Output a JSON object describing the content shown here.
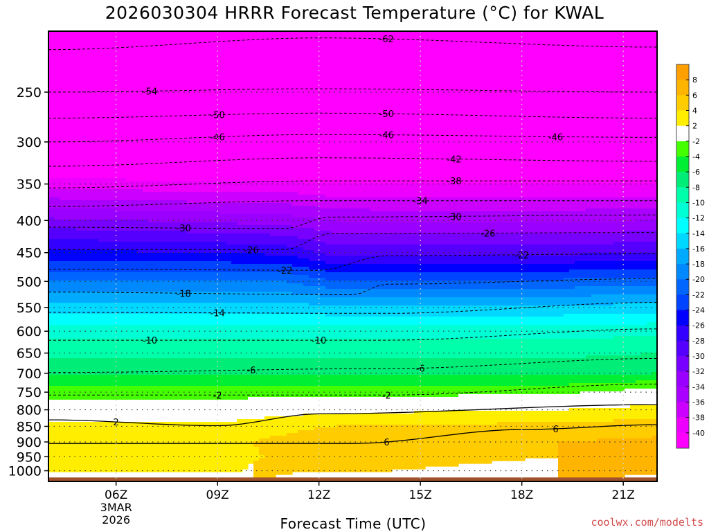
{
  "chart_data": {
    "type": "heatmap",
    "title": "2026030304 HRRR Forecast Temperature (°C) for KWAL",
    "xlabel": "Forecast Time (UTC)",
    "ylabel": "",
    "credit": "coolwx.com/modelts",
    "x_ticks": [
      {
        "label": "06Z",
        "hour": 6,
        "sub1": "3MAR",
        "sub2": "2026"
      },
      {
        "label": "09Z",
        "hour": 9,
        "sub1": "",
        "sub2": ""
      },
      {
        "label": "12Z",
        "hour": 12,
        "sub1": "",
        "sub2": ""
      },
      {
        "label": "15Z",
        "hour": 15,
        "sub1": "",
        "sub2": ""
      },
      {
        "label": "18Z",
        "hour": 18,
        "sub1": "",
        "sub2": ""
      },
      {
        "label": "21Z",
        "hour": 21,
        "sub1": "",
        "sub2": ""
      }
    ],
    "xlim": [
      4,
      22
    ],
    "y_ticks": [
      250,
      300,
      350,
      400,
      450,
      500,
      550,
      600,
      650,
      700,
      750,
      800,
      850,
      900,
      950,
      1000
    ],
    "ylim": [
      1040,
      200
    ],
    "y_scale": "log-pressure",
    "colorbar": {
      "ticks": [
        8,
        6,
        4,
        2,
        -2,
        -4,
        -6,
        -8,
        -10,
        -12,
        -14,
        -16,
        -18,
        -20,
        -22,
        -24,
        -26,
        -28,
        -30,
        -32,
        -34,
        -36,
        -38,
        -40
      ],
      "bands": [
        {
          "min": 8,
          "max": 10,
          "color": "#ffa000"
        },
        {
          "min": 6,
          "max": 8,
          "color": "#ffb400"
        },
        {
          "min": 4,
          "max": 6,
          "color": "#ffcc00"
        },
        {
          "min": 2,
          "max": 4,
          "color": "#ffee00"
        },
        {
          "min": -2,
          "max": 2,
          "color": "#ffffff"
        },
        {
          "min": -4,
          "max": -2,
          "color": "#44ff00"
        },
        {
          "min": -6,
          "max": -4,
          "color": "#00ee33"
        },
        {
          "min": -8,
          "max": -6,
          "color": "#00ee77"
        },
        {
          "min": -10,
          "max": -8,
          "color": "#00ffaa"
        },
        {
          "min": -12,
          "max": -10,
          "color": "#00ffd4"
        },
        {
          "min": -14,
          "max": -12,
          "color": "#00ffff"
        },
        {
          "min": -16,
          "max": -14,
          "color": "#00d8ff"
        },
        {
          "min": -18,
          "max": -16,
          "color": "#00aaff"
        },
        {
          "min": -20,
          "max": -18,
          "color": "#0088ff"
        },
        {
          "min": -22,
          "max": -20,
          "color": "#0066ff"
        },
        {
          "min": -24,
          "max": -22,
          "color": "#0044ff"
        },
        {
          "min": -26,
          "max": -24,
          "color": "#0000ff"
        },
        {
          "min": -28,
          "max": -26,
          "color": "#3300ff"
        },
        {
          "min": -30,
          "max": -28,
          "color": "#5500ff"
        },
        {
          "min": -32,
          "max": -30,
          "color": "#7700ff"
        },
        {
          "min": -34,
          "max": -32,
          "color": "#9900ff"
        },
        {
          "min": -36,
          "max": -34,
          "color": "#aa00ff"
        },
        {
          "min": -38,
          "max": -36,
          "color": "#cc00ff"
        },
        {
          "min": -40,
          "max": -38,
          "color": "#ee00ff"
        },
        {
          "min": -100,
          "max": -40,
          "color": "#ff00ff"
        }
      ]
    },
    "profile_hours": [
      4,
      9,
      11,
      12.3,
      14,
      19,
      22
    ],
    "profiles": [
      {
        "p": [
          1040,
          1010,
          1000,
          950,
          900,
          850,
          800,
          780,
          750,
          700,
          650,
          600,
          550,
          500,
          450,
          400,
          350,
          300,
          250,
          200
        ],
        "hours": [
          4,
          22
        ]
      }
    ],
    "field": [
      {
        "hour": 4,
        "t": [
          5.5,
          4.5,
          3.5,
          3.0,
          3.5,
          2.5,
          0.5,
          -1.5,
          -3.0,
          -6.5,
          -8.5,
          -11.0,
          -15.0,
          -20.0,
          -25.5,
          -31.5,
          -39.0,
          -46.0,
          -54.0,
          -62.0
        ]
      },
      {
        "hour": 9,
        "t": [
          5.5,
          4.5,
          3.5,
          3.0,
          3.5,
          2.5,
          0.5,
          -1.5,
          -3.0,
          -6.5,
          -8.5,
          -11.0,
          -15.0,
          -20.0,
          -26.0,
          -32.5,
          -39.5,
          -46.5,
          -54.0,
          -62.0
        ]
      },
      {
        "hour": 11,
        "t": [
          6.5,
          6.0,
          5.0,
          4.5,
          4.5,
          3.5,
          1.0,
          -1.0,
          -3.0,
          -6.5,
          -8.5,
          -11.0,
          -15.0,
          -20.0,
          -26.5,
          -33.0,
          -39.5,
          -46.5,
          -54.0,
          -62.0
        ]
      },
      {
        "hour": 12.3,
        "t": [
          7.5,
          7.0,
          5.5,
          5.0,
          5.0,
          4.0,
          1.5,
          -0.5,
          -3.0,
          -6.5,
          -8.5,
          -11.0,
          -15.5,
          -21.5,
          -28.5,
          -34.0,
          -40.0,
          -46.5,
          -54.0,
          -62.0
        ]
      },
      {
        "hour": 14,
        "t": [
          7.5,
          7.0,
          6.0,
          5.5,
          5.5,
          4.5,
          1.5,
          -0.5,
          -3.0,
          -6.5,
          -8.5,
          -11.0,
          -15.5,
          -21.5,
          -28.5,
          -34.5,
          -40.0,
          -46.5,
          -54.0,
          -62.0
        ]
      },
      {
        "hour": 19,
        "t": [
          8.0,
          7.5,
          6.5,
          6.0,
          6.0,
          4.5,
          2.0,
          0.0,
          -2.5,
          -6.5,
          -8.5,
          -11.0,
          -15.5,
          -21.5,
          -28.5,
          -34.5,
          -40.0,
          -46.5,
          -54.0,
          -62.0
        ]
      },
      {
        "hour": 22,
        "t": [
          8.5,
          8.0,
          7.0,
          6.5,
          6.5,
          5.0,
          3.0,
          1.5,
          -1.0,
          -6.0,
          -8.0,
          -10.5,
          -15.0,
          -21.0,
          -28.0,
          -34.0,
          -40.0,
          -46.5,
          -54.0,
          -62.0
        ]
      }
    ],
    "contours": [
      {
        "label": "-62",
        "series": [
          {
            "hour": 4,
            "p": 214
          },
          {
            "hour": 12,
            "p": 205
          },
          {
            "hour": 22,
            "p": 212
          }
        ],
        "label_hour": 14
      },
      {
        "label": "-54",
        "series": [
          {
            "hour": 4,
            "p": 250
          },
          {
            "hour": 12,
            "p": 247
          },
          {
            "hour": 22,
            "p": 250
          }
        ],
        "label_hour": 7
      },
      {
        "label": "-50",
        "series": [
          {
            "hour": 4,
            "p": 275
          },
          {
            "hour": 12,
            "p": 270
          },
          {
            "hour": 22,
            "p": 275
          }
        ],
        "label_hour": 9
      },
      {
        "label": "-50",
        "series": [],
        "label_hour": 14
      },
      {
        "label": "-46",
        "series": [
          {
            "hour": 4,
            "p": 300
          },
          {
            "hour": 12,
            "p": 292
          },
          {
            "hour": 22,
            "p": 295
          }
        ],
        "label_hour": 9
      },
      {
        "label": "-46",
        "series": [],
        "label_hour": 14
      },
      {
        "label": "-46",
        "series": [],
        "label_hour": 19
      },
      {
        "label": "-42",
        "series": [
          {
            "hour": 4,
            "p": 328
          },
          {
            "hour": 12,
            "p": 318
          },
          {
            "hour": 22,
            "p": 322
          }
        ],
        "label_hour": 16
      },
      {
        "label": "-38",
        "series": [
          {
            "hour": 4,
            "p": 355
          },
          {
            "hour": 12,
            "p": 346
          },
          {
            "hour": 22,
            "p": 346
          }
        ],
        "label_hour": 16
      },
      {
        "label": "-34",
        "series": [
          {
            "hour": 4,
            "p": 380
          },
          {
            "hour": 12,
            "p": 372
          },
          {
            "hour": 22,
            "p": 372
          }
        ],
        "label_hour": 15
      },
      {
        "label": "-30",
        "series": [
          {
            "hour": 4,
            "p": 410
          },
          {
            "hour": 11,
            "p": 412
          },
          {
            "hour": 12.3,
            "p": 395
          },
          {
            "hour": 22,
            "p": 392
          }
        ],
        "label_hour": 8
      },
      {
        "label": "-30",
        "series": [],
        "label_hour": 16
      },
      {
        "label": "-26",
        "series": [
          {
            "hour": 4,
            "p": 445
          },
          {
            "hour": 11,
            "p": 445
          },
          {
            "hour": 12.3,
            "p": 420
          },
          {
            "hour": 22,
            "p": 418
          }
        ],
        "label_hour": 10
      },
      {
        "label": "-26",
        "series": [],
        "label_hour": 17
      },
      {
        "label": "-22",
        "series": [
          {
            "hour": 4,
            "p": 478
          },
          {
            "hour": 12,
            "p": 480
          },
          {
            "hour": 14,
            "p": 455
          },
          {
            "hour": 22,
            "p": 452
          }
        ],
        "label_hour": 11
      },
      {
        "label": "-22",
        "series": [],
        "label_hour": 18
      },
      {
        "label": "-18",
        "series": [
          {
            "hour": 4,
            "p": 520
          },
          {
            "hour": 13,
            "p": 525
          },
          {
            "hour": 14,
            "p": 505
          },
          {
            "hour": 22,
            "p": 495
          }
        ],
        "label_hour": 8
      },
      {
        "label": "-14",
        "series": [
          {
            "hour": 4,
            "p": 560
          },
          {
            "hour": 14,
            "p": 562
          },
          {
            "hour": 22,
            "p": 540
          }
        ],
        "label_hour": 9
      },
      {
        "label": "-10",
        "series": [
          {
            "hour": 4,
            "p": 620
          },
          {
            "hour": 14,
            "p": 620
          },
          {
            "hour": 22,
            "p": 595
          }
        ],
        "label_hour": 7
      },
      {
        "label": "-10",
        "series": [],
        "label_hour": 12
      },
      {
        "label": "-6",
        "series": [
          {
            "hour": 4,
            "p": 698
          },
          {
            "hour": 14,
            "p": 688
          },
          {
            "hour": 22,
            "p": 663
          }
        ],
        "label_hour": 10
      },
      {
        "label": "-6",
        "series": [],
        "label_hour": 15
      },
      {
        "label": "-2",
        "series": [
          {
            "hour": 4,
            "p": 758
          },
          {
            "hour": 14,
            "p": 758
          },
          {
            "hour": 22,
            "p": 728
          }
        ],
        "label_hour": 9
      },
      {
        "label": "-2",
        "series": [],
        "label_hour": 14
      },
      {
        "label": "2",
        "series": [
          {
            "hour": 4,
            "p": 830
          },
          {
            "hour": 9,
            "p": 848
          },
          {
            "hour": 12,
            "p": 812
          },
          {
            "hour": 22,
            "p": 785
          }
        ],
        "label_hour": 6
      },
      {
        "label": "6",
        "series": [
          {
            "hour": 13,
            "p": 905
          },
          {
            "hour": 18,
            "p": 860
          },
          {
            "hour": 22,
            "p": 845
          }
        ],
        "label_hour": 14
      },
      {
        "label": "6",
        "series": [],
        "label_hour": 19
      }
    ]
  }
}
